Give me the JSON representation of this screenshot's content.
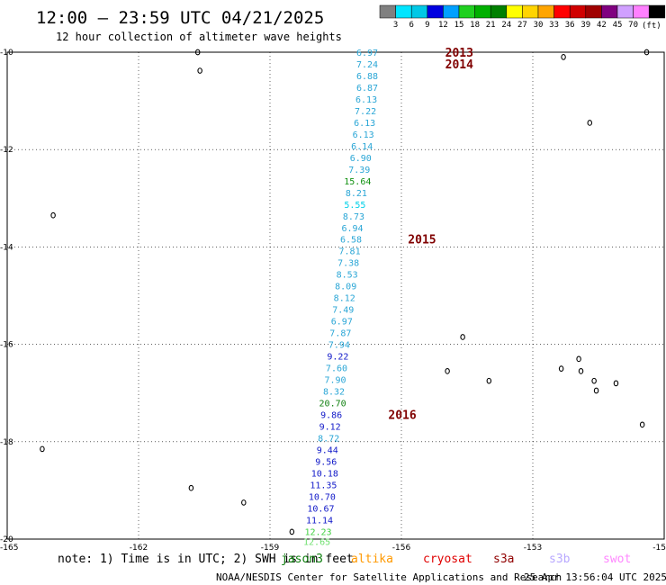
{
  "header": {
    "title": "12:00 – 23:59 UTC 04/21/2025",
    "subtitle": "12 hour collection of altimeter wave heights"
  },
  "colorbar": {
    "unit": "(ft)",
    "colors": [
      "#808080",
      "#00e5ff",
      "#00c8e6",
      "#0000e0",
      "#00a0ff",
      "#20d020",
      "#00b000",
      "#008000",
      "#ffff00",
      "#ffd400",
      "#ffa500",
      "#ff0000",
      "#d00000",
      "#a00000",
      "#800080",
      "#d0a0ff",
      "#ff80ff",
      "#000000"
    ],
    "ticks": [
      "3",
      "6",
      "9",
      "12",
      "15",
      "18",
      "21",
      "24",
      "27",
      "30",
      "33",
      "36",
      "39",
      "42",
      "45",
      "70"
    ]
  },
  "axes": {
    "lon_labels": [
      "-165",
      "-162",
      "-159",
      "-156",
      "-153",
      "-15"
    ],
    "lat_labels": [
      "-10",
      "-12",
      "-14",
      "-16",
      "-18",
      "-20"
    ],
    "lon_range": [
      -165,
      -150
    ],
    "lat_range": [
      -10,
      -20
    ],
    "grid": "dotted"
  },
  "observations": [
    {
      "lon": -156.78,
      "lat": -10.0,
      "v": "6.97",
      "c": "#2aa6d6"
    },
    {
      "lon": -156.78,
      "lat": -10.24,
      "v": "7.24",
      "c": "#2aa6d6"
    },
    {
      "lon": -156.78,
      "lat": -10.48,
      "v": "6.88",
      "c": "#2aa6d6"
    },
    {
      "lon": -156.78,
      "lat": -10.72,
      "v": "6.87",
      "c": "#2aa6d6"
    },
    {
      "lon": -156.8,
      "lat": -10.96,
      "v": "6.13",
      "c": "#2aa6d6"
    },
    {
      "lon": -156.82,
      "lat": -11.2,
      "v": "7.22",
      "c": "#2aa6d6"
    },
    {
      "lon": -156.84,
      "lat": -11.44,
      "v": "6.13",
      "c": "#2aa6d6"
    },
    {
      "lon": -156.87,
      "lat": -11.68,
      "v": "6.13",
      "c": "#2aa6d6"
    },
    {
      "lon": -156.9,
      "lat": -11.92,
      "v": "6.14",
      "c": "#2aa6d6"
    },
    {
      "lon": -156.93,
      "lat": -12.16,
      "v": "6.90",
      "c": "#2aa6d6"
    },
    {
      "lon": -156.96,
      "lat": -12.4,
      "v": "7.39",
      "c": "#2aa6d6"
    },
    {
      "lon": -157.0,
      "lat": -12.64,
      "v": "15.64",
      "c": "#109010"
    },
    {
      "lon": -157.03,
      "lat": -12.88,
      "v": "8.21",
      "c": "#2aa6d6"
    },
    {
      "lon": -157.06,
      "lat": -13.12,
      "v": "5.55",
      "c": "#00d0e8"
    },
    {
      "lon": -157.09,
      "lat": -13.36,
      "v": "8.73",
      "c": "#2aa6d6"
    },
    {
      "lon": -157.12,
      "lat": -13.6,
      "v": "6.94",
      "c": "#2aa6d6"
    },
    {
      "lon": -157.15,
      "lat": -13.84,
      "v": "6.58",
      "c": "#2aa6d6"
    },
    {
      "lon": -157.18,
      "lat": -14.08,
      "v": "7.81",
      "c": "#2aa6d6"
    },
    {
      "lon": -157.21,
      "lat": -14.32,
      "v": "7.38",
      "c": "#2aa6d6"
    },
    {
      "lon": -157.24,
      "lat": -14.56,
      "v": "8.53",
      "c": "#2aa6d6"
    },
    {
      "lon": -157.27,
      "lat": -14.8,
      "v": "8.09",
      "c": "#2aa6d6"
    },
    {
      "lon": -157.3,
      "lat": -15.04,
      "v": "8.12",
      "c": "#2aa6d6"
    },
    {
      "lon": -157.33,
      "lat": -15.28,
      "v": "7.49",
      "c": "#2aa6d6"
    },
    {
      "lon": -157.36,
      "lat": -15.52,
      "v": "6.97",
      "c": "#2aa6d6"
    },
    {
      "lon": -157.39,
      "lat": -15.76,
      "v": "7.87",
      "c": "#2aa6d6"
    },
    {
      "lon": -157.42,
      "lat": -16.0,
      "v": "7.94",
      "c": "#2aa6d6"
    },
    {
      "lon": -157.45,
      "lat": -16.24,
      "v": "9.22",
      "c": "#1018c8"
    },
    {
      "lon": -157.48,
      "lat": -16.48,
      "v": "7.60",
      "c": "#2aa6d6"
    },
    {
      "lon": -157.51,
      "lat": -16.72,
      "v": "7.90",
      "c": "#2aa6d6"
    },
    {
      "lon": -157.54,
      "lat": -16.96,
      "v": "8.32",
      "c": "#2aa6d6"
    },
    {
      "lon": -157.57,
      "lat": -17.2,
      "v": "20.70",
      "c": "#108010"
    },
    {
      "lon": -157.6,
      "lat": -17.44,
      "v": "9.86",
      "c": "#1018c8"
    },
    {
      "lon": -157.63,
      "lat": -17.68,
      "v": "9.12",
      "c": "#1018c8"
    },
    {
      "lon": -157.66,
      "lat": -17.92,
      "v": "8.72",
      "c": "#2aa6d6"
    },
    {
      "lon": -157.69,
      "lat": -18.16,
      "v": "9.44",
      "c": "#1018c8"
    },
    {
      "lon": -157.72,
      "lat": -18.4,
      "v": "9.56",
      "c": "#1018c8"
    },
    {
      "lon": -157.75,
      "lat": -18.64,
      "v": "10.18",
      "c": "#1018c8"
    },
    {
      "lon": -157.78,
      "lat": -18.88,
      "v": "11.35",
      "c": "#1018c8"
    },
    {
      "lon": -157.81,
      "lat": -19.12,
      "v": "10.70",
      "c": "#1018c8"
    },
    {
      "lon": -157.84,
      "lat": -19.36,
      "v": "10.67",
      "c": "#1018c8"
    },
    {
      "lon": -157.87,
      "lat": -19.6,
      "v": "11.14",
      "c": "#1018c8"
    },
    {
      "lon": -157.9,
      "lat": -19.84,
      "v": "12.23",
      "c": "#40d040"
    },
    {
      "lon": -157.93,
      "lat": -20.05,
      "v": "12.65",
      "c": "#70e070"
    }
  ],
  "time_markers": [
    {
      "lon": -155.0,
      "lat": -10.0,
      "label": "2013"
    },
    {
      "lon": -155.0,
      "lat": -10.24,
      "label": "2014"
    },
    {
      "lon": -155.85,
      "lat": -13.84,
      "label": "2015"
    },
    {
      "lon": -156.3,
      "lat": -17.44,
      "label": "2016"
    }
  ],
  "time_marker_color": "#800000",
  "islands": [
    {
      "lon": -160.65,
      "lat": -10.0
    },
    {
      "lon": -160.6,
      "lat": -10.38
    },
    {
      "lon": -163.95,
      "lat": -13.35
    },
    {
      "lon": -164.2,
      "lat": -18.15
    },
    {
      "lon": -160.8,
      "lat": -18.95
    },
    {
      "lon": -159.6,
      "lat": -19.25
    },
    {
      "lon": -158.5,
      "lat": -19.85
    },
    {
      "lon": -154.6,
      "lat": -15.85
    },
    {
      "lon": -154.95,
      "lat": -16.55
    },
    {
      "lon": -154.0,
      "lat": -16.75
    },
    {
      "lon": -152.3,
      "lat": -10.1
    },
    {
      "lon": -151.7,
      "lat": -11.45
    },
    {
      "lon": -151.95,
      "lat": -16.3
    },
    {
      "lon": -152.35,
      "lat": -16.5
    },
    {
      "lon": -151.9,
      "lat": -16.55
    },
    {
      "lon": -151.6,
      "lat": -16.75
    },
    {
      "lon": -151.55,
      "lat": -16.95
    },
    {
      "lon": -151.1,
      "lat": -16.8
    },
    {
      "lon": -150.5,
      "lat": -17.65
    },
    {
      "lon": -150.4,
      "lat": -10.0
    }
  ],
  "footer": {
    "note": "note: 1) Time is in UTC; 2) SWH is in feet",
    "satellites": [
      {
        "name": "jason3",
        "color": "#108010"
      },
      {
        "name": "altika",
        "color": "#ff9900"
      },
      {
        "name": "cryosat",
        "color": "#e00000"
      },
      {
        "name": "s3a",
        "color": "#900000"
      },
      {
        "name": "s3b",
        "color": "#b8a8ff"
      },
      {
        "name": "swot",
        "color": "#ff88ff"
      }
    ],
    "credit": "NOAA/NESDIS Center for Satellite Applications and Research",
    "timestamp": "25 Apr 13:56:04 UTC 2025"
  }
}
